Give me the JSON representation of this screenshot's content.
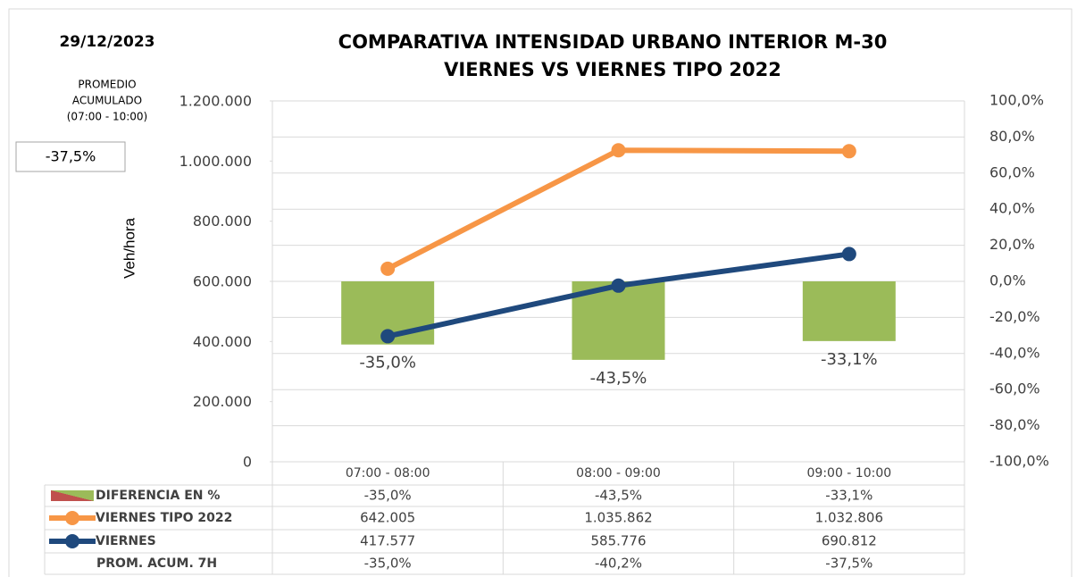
{
  "chart_data": {
    "type": "bar_line",
    "date": "29/12/2023",
    "title": "COMPARATIVA INTENSIDAD URBANO INTERIOR M-30",
    "subtitle": "VIERNES VS VIERNES TIPO 2022",
    "summary_label": [
      "PROMEDIO",
      "ACUMULADO",
      "(07:00 - 10:00)"
    ],
    "summary_value": -37.5,
    "summary_value_label": "-37,5%",
    "ylabel": "Veh/hora",
    "categories": [
      "07:00 - 08:00",
      "08:00 - 09:00",
      "09:00 - 10:00"
    ],
    "ylim": [
      0,
      1200000
    ],
    "yticks": [
      0,
      {
        "value": 200000,
        "label": "200.000"
      },
      {
        "value": 400000,
        "label": "400.000"
      },
      {
        "value": 600000,
        "label": "600.000"
      },
      {
        "value": 800000,
        "label": "800.000"
      },
      {
        "value": 1000000,
        "label": "1.000.000"
      },
      {
        "value": 1200000,
        "label": "1.200.000"
      }
    ],
    "y2lim": [
      -100,
      100
    ],
    "y2ticks": [
      {
        "value": -100,
        "label": "-100,0%"
      },
      {
        "value": -80,
        "label": "-80,0%"
      },
      {
        "value": -60,
        "label": "-60,0%"
      },
      {
        "value": -40,
        "label": "-40,0%"
      },
      {
        "value": -20,
        "label": "-20,0%"
      },
      {
        "value": 0,
        "label": "0,0%"
      },
      {
        "value": 20,
        "label": "20,0%"
      },
      {
        "value": 40,
        "label": "40,0%"
      },
      {
        "value": 60,
        "label": "60,0%"
      },
      {
        "value": 80,
        "label": "80,0%"
      },
      {
        "value": 100,
        "label": "100,0%"
      }
    ],
    "grid": true,
    "series": [
      {
        "name": "DIFERENCIA EN %",
        "type": "bar",
        "axis": "y2",
        "color": "#9bbb59",
        "values": [
          -35.0,
          -43.5,
          -33.1
        ],
        "value_labels": [
          "-35,0%",
          "-43,5%",
          "-33,1%"
        ]
      },
      {
        "name": "VIERNES TIPO 2022",
        "type": "line",
        "color": "#f79646",
        "values": [
          642005,
          1035862,
          1032806
        ],
        "value_labels": [
          "642.005",
          "1.035.862",
          "1.032.806"
        ]
      },
      {
        "name": "VIERNES",
        "type": "line",
        "color": "#1f497d",
        "values": [
          417577,
          585776,
          690812
        ],
        "value_labels": [
          "417.577",
          "585.776",
          "690.812"
        ]
      },
      {
        "name": "PROM. ACUM. 7H",
        "type": "table",
        "values": [
          -35.0,
          -40.2,
          -37.5
        ],
        "value_labels": [
          "-35,0%",
          "-40,2%",
          "-37,5%"
        ]
      }
    ]
  }
}
